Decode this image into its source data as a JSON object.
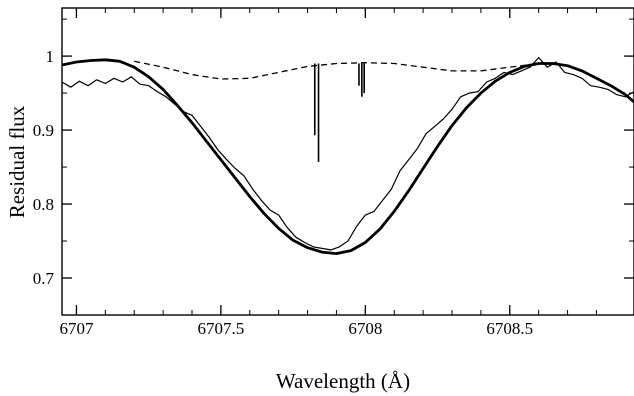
{
  "chart_data": {
    "type": "line",
    "title": "",
    "xlabel": "Wavelength (Å)",
    "ylabel": "Residual flux",
    "xlim": [
      6706.95,
      6708.93
    ],
    "ylim": [
      0.65,
      1.065
    ],
    "grid": false,
    "legend": "none",
    "x_ticks": [
      6707,
      6707.5,
      6708,
      6708.5
    ],
    "x_tick_labels": [
      "6707",
      "6707.5",
      "6708",
      "6708.5"
    ],
    "y_ticks": [
      0.7,
      0.8,
      0.9,
      1.0
    ],
    "y_tick_labels": [
      "0.7",
      "0.8",
      "0.9",
      "1"
    ],
    "series": [
      {
        "style": "thin-solid",
        "color": "#000000",
        "x": [
          6706.95,
          6706.98,
          6707.01,
          6707.04,
          6707.07,
          6707.1,
          6707.13,
          6707.16,
          6707.19,
          6707.22,
          6707.25,
          6707.28,
          6707.31,
          6707.34,
          6707.37,
          6707.4,
          6707.43,
          6707.46,
          6707.49,
          6707.52,
          6707.55,
          6707.58,
          6707.61,
          6707.64,
          6707.67,
          6707.7,
          6707.73,
          6707.76,
          6707.79,
          6707.82,
          6707.85,
          6707.88,
          6707.91,
          6707.94,
          6707.97,
          6708.0,
          6708.03,
          6708.06,
          6708.09,
          6708.12,
          6708.15,
          6708.18,
          6708.21,
          6708.24,
          6708.27,
          6708.3,
          6708.33,
          6708.36,
          6708.39,
          6708.42,
          6708.45,
          6708.48,
          6708.51,
          6708.54,
          6708.57,
          6708.6,
          6708.63,
          6708.66,
          6708.69,
          6708.72,
          6708.75,
          6708.78,
          6708.81,
          6708.84,
          6708.87,
          6708.9,
          6708.93
        ],
        "y": [
          0.965,
          0.958,
          0.966,
          0.96,
          0.968,
          0.963,
          0.97,
          0.965,
          0.972,
          0.962,
          0.96,
          0.952,
          0.945,
          0.935,
          0.925,
          0.92,
          0.905,
          0.89,
          0.873,
          0.86,
          0.848,
          0.838,
          0.82,
          0.805,
          0.792,
          0.785,
          0.768,
          0.755,
          0.748,
          0.742,
          0.74,
          0.738,
          0.742,
          0.75,
          0.77,
          0.785,
          0.79,
          0.805,
          0.82,
          0.845,
          0.86,
          0.875,
          0.895,
          0.905,
          0.915,
          0.928,
          0.945,
          0.95,
          0.952,
          0.965,
          0.97,
          0.978,
          0.975,
          0.98,
          0.985,
          0.998,
          0.985,
          0.992,
          0.978,
          0.975,
          0.97,
          0.96,
          0.958,
          0.955,
          0.948,
          0.945,
          0.952
        ]
      },
      {
        "style": "thick-solid",
        "color": "#000000",
        "x": [
          6706.95,
          6707.0,
          6707.05,
          6707.1,
          6707.15,
          6707.2,
          6707.25,
          6707.3,
          6707.35,
          6707.4,
          6707.45,
          6707.5,
          6707.55,
          6707.6,
          6707.65,
          6707.7,
          6707.75,
          6707.8,
          6707.85,
          6707.9,
          6707.95,
          6708.0,
          6708.05,
          6708.1,
          6708.15,
          6708.2,
          6708.25,
          6708.3,
          6708.35,
          6708.4,
          6708.45,
          6708.5,
          6708.55,
          6708.6,
          6708.65,
          6708.7,
          6708.75,
          6708.8,
          6708.85,
          6708.9,
          6708.93
        ],
        "y": [
          0.988,
          0.992,
          0.994,
          0.995,
          0.993,
          0.985,
          0.972,
          0.955,
          0.933,
          0.91,
          0.885,
          0.86,
          0.835,
          0.81,
          0.787,
          0.767,
          0.751,
          0.741,
          0.735,
          0.733,
          0.737,
          0.748,
          0.766,
          0.79,
          0.818,
          0.848,
          0.878,
          0.906,
          0.93,
          0.95,
          0.966,
          0.978,
          0.986,
          0.99,
          0.99,
          0.987,
          0.98,
          0.97,
          0.96,
          0.948,
          0.938
        ]
      },
      {
        "style": "dashed",
        "color": "#000000",
        "x": [
          6707.2,
          6707.3,
          6707.4,
          6707.5,
          6707.6,
          6707.7,
          6707.8,
          6707.9,
          6708.0,
          6708.1,
          6708.2,
          6708.3,
          6708.4,
          6708.5,
          6708.6
        ],
        "y": [
          0.993,
          0.985,
          0.975,
          0.969,
          0.97,
          0.978,
          0.986,
          0.99,
          0.991,
          0.99,
          0.985,
          0.98,
          0.98,
          0.985,
          0.99
        ]
      }
    ],
    "line_markers": [
      {
        "x": 6707.825,
        "y_top": 0.99,
        "y_bottom": 0.893
      },
      {
        "x": 6707.838,
        "y_top": 0.99,
        "y_bottom": 0.857
      },
      {
        "x": 6707.978,
        "y_top": 0.99,
        "y_bottom": 0.96
      },
      {
        "x": 6707.988,
        "y_top": 0.99,
        "y_bottom": 0.945
      },
      {
        "x": 6707.996,
        "y_top": 0.99,
        "y_bottom": 0.95
      }
    ]
  }
}
